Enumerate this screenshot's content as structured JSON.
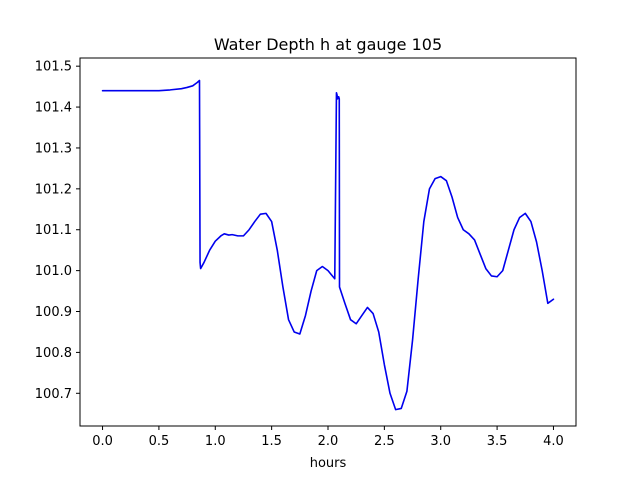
{
  "chart_data": {
    "type": "line",
    "title": "Water Depth h at gauge 105",
    "xlabel": "hours",
    "ylabel": "",
    "xlim": [
      -0.2,
      4.2
    ],
    "ylim": [
      100.62,
      101.52
    ],
    "xticks": [
      0.0,
      0.5,
      1.0,
      1.5,
      2.0,
      2.5,
      3.0,
      3.5,
      4.0
    ],
    "xtick_labels": [
      "0.0",
      "0.5",
      "1.0",
      "1.5",
      "2.0",
      "2.5",
      "3.0",
      "3.5",
      "4.0"
    ],
    "yticks": [
      100.7,
      100.8,
      100.9,
      101.0,
      101.1,
      101.2,
      101.3,
      101.4,
      101.5
    ],
    "ytick_labels": [
      "100.7",
      "100.8",
      "100.9",
      "101.0",
      "101.1",
      "101.2",
      "101.3",
      "101.4",
      "101.5"
    ],
    "grid": false,
    "legend": "none",
    "series": [
      {
        "color": "#0000ee",
        "x": [
          0.0,
          0.1,
          0.2,
          0.3,
          0.4,
          0.5,
          0.6,
          0.7,
          0.75,
          0.8,
          0.84,
          0.86,
          0.865,
          0.87,
          0.9,
          0.95,
          1.0,
          1.05,
          1.08,
          1.12,
          1.15,
          1.2,
          1.25,
          1.3,
          1.35,
          1.4,
          1.45,
          1.5,
          1.55,
          1.6,
          1.65,
          1.7,
          1.75,
          1.8,
          1.85,
          1.9,
          1.95,
          2.0,
          2.03,
          2.06,
          2.075,
          2.08,
          2.085,
          2.09,
          2.095,
          2.1,
          2.102,
          2.15,
          2.2,
          2.25,
          2.3,
          2.35,
          2.4,
          2.45,
          2.5,
          2.55,
          2.6,
          2.65,
          2.7,
          2.75,
          2.8,
          2.85,
          2.9,
          2.95,
          3.0,
          3.05,
          3.1,
          3.15,
          3.2,
          3.25,
          3.3,
          3.35,
          3.4,
          3.45,
          3.5,
          3.55,
          3.6,
          3.65,
          3.7,
          3.75,
          3.8,
          3.85,
          3.9,
          3.95,
          4.0
        ],
        "values": [
          101.44,
          101.44,
          101.44,
          101.44,
          101.44,
          101.44,
          101.442,
          101.445,
          101.448,
          101.452,
          101.46,
          101.465,
          101.02,
          101.005,
          101.02,
          101.05,
          101.072,
          101.085,
          101.09,
          101.087,
          101.088,
          101.085,
          101.085,
          101.1,
          101.12,
          101.138,
          101.14,
          101.12,
          101.05,
          100.96,
          100.88,
          100.85,
          100.845,
          100.89,
          100.95,
          101.0,
          101.01,
          101.0,
          100.99,
          100.98,
          101.435,
          101.43,
          101.42,
          101.425,
          101.425,
          101.42,
          100.96,
          100.92,
          100.88,
          100.87,
          100.89,
          100.91,
          100.895,
          100.85,
          100.77,
          100.7,
          100.66,
          100.663,
          100.705,
          100.83,
          100.98,
          101.12,
          101.2,
          101.225,
          101.23,
          101.22,
          101.18,
          101.13,
          101.1,
          101.09,
          101.075,
          101.04,
          101.005,
          100.987,
          100.985,
          101.0,
          101.05,
          101.1,
          101.13,
          101.14,
          101.12,
          101.07,
          101.0,
          100.92,
          100.93
        ]
      }
    ]
  }
}
